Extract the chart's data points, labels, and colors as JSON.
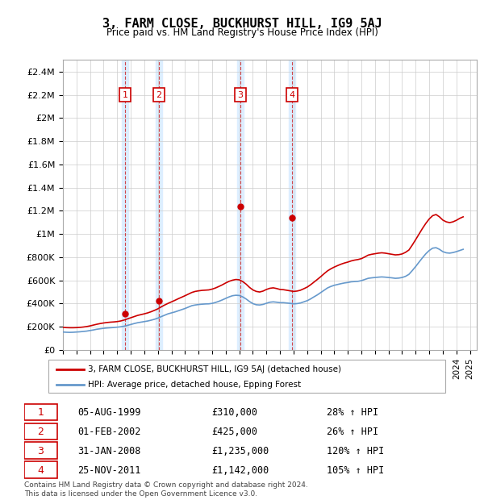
{
  "title": "3, FARM CLOSE, BUCKHURST HILL, IG9 5AJ",
  "subtitle": "Price paid vs. HM Land Registry's House Price Index (HPI)",
  "ylabel_values": [
    "£0",
    "£200K",
    "£400K",
    "£600K",
    "£800K",
    "£1M",
    "£1.2M",
    "£1.4M",
    "£1.6M",
    "£1.8M",
    "£2M",
    "£2.2M",
    "£2.4M"
  ],
  "y_values": [
    0,
    200000,
    400000,
    600000,
    800000,
    1000000,
    1200000,
    1400000,
    1600000,
    1800000,
    2000000,
    2200000,
    2400000
  ],
  "ylim": [
    0,
    2500000
  ],
  "xlim_start": 1995.0,
  "xlim_end": 2025.5,
  "hpi_color": "#6699cc",
  "price_color": "#cc0000",
  "shade_color": "#ddeeff",
  "transactions": [
    {
      "num": 1,
      "date": "05-AUG-1999",
      "year": 1999.58,
      "price": 310000,
      "pct": "28%",
      "dir": "↑"
    },
    {
      "num": 2,
      "date": "01-FEB-2002",
      "year": 2002.08,
      "price": 425000,
      "pct": "26%",
      "dir": "↑"
    },
    {
      "num": 3,
      "date": "31-JAN-2008",
      "year": 2008.08,
      "price": 1235000,
      "pct": "120%",
      "dir": "↑"
    },
    {
      "num": 4,
      "date": "25-NOV-2011",
      "year": 2011.9,
      "price": 1142000,
      "pct": "105%",
      "dir": "↑"
    }
  ],
  "legend_label_price": "3, FARM CLOSE, BUCKHURST HILL, IG9 5AJ (detached house)",
  "legend_label_hpi": "HPI: Average price, detached house, Epping Forest",
  "footer": "Contains HM Land Registry data © Crown copyright and database right 2024.\nThis data is licensed under the Open Government Licence v3.0.",
  "hpi_data": {
    "years": [
      1995.0,
      1995.25,
      1995.5,
      1995.75,
      1996.0,
      1996.25,
      1996.5,
      1996.75,
      1997.0,
      1997.25,
      1997.5,
      1997.75,
      1998.0,
      1998.25,
      1998.5,
      1998.75,
      1999.0,
      1999.25,
      1999.5,
      1999.75,
      2000.0,
      2000.25,
      2000.5,
      2000.75,
      2001.0,
      2001.25,
      2001.5,
      2001.75,
      2002.0,
      2002.25,
      2002.5,
      2002.75,
      2003.0,
      2003.25,
      2003.5,
      2003.75,
      2004.0,
      2004.25,
      2004.5,
      2004.75,
      2005.0,
      2005.25,
      2005.5,
      2005.75,
      2006.0,
      2006.25,
      2006.5,
      2006.75,
      2007.0,
      2007.25,
      2007.5,
      2007.75,
      2008.0,
      2008.25,
      2008.5,
      2008.75,
      2009.0,
      2009.25,
      2009.5,
      2009.75,
      2010.0,
      2010.25,
      2010.5,
      2010.75,
      2011.0,
      2011.25,
      2011.5,
      2011.75,
      2012.0,
      2012.25,
      2012.5,
      2012.75,
      2013.0,
      2013.25,
      2013.5,
      2013.75,
      2014.0,
      2014.25,
      2014.5,
      2014.75,
      2015.0,
      2015.25,
      2015.5,
      2015.75,
      2016.0,
      2016.25,
      2016.5,
      2016.75,
      2017.0,
      2017.25,
      2017.5,
      2017.75,
      2018.0,
      2018.25,
      2018.5,
      2018.75,
      2019.0,
      2019.25,
      2019.5,
      2019.75,
      2020.0,
      2020.25,
      2020.5,
      2020.75,
      2021.0,
      2021.25,
      2021.5,
      2021.75,
      2022.0,
      2022.25,
      2022.5,
      2022.75,
      2023.0,
      2023.25,
      2023.5,
      2023.75,
      2024.0,
      2024.25,
      2024.5
    ],
    "values": [
      155000,
      153000,
      152000,
      153000,
      155000,
      157000,
      160000,
      163000,
      168000,
      173000,
      179000,
      183000,
      187000,
      190000,
      192000,
      194000,
      197000,
      200000,
      205000,
      212000,
      220000,
      228000,
      235000,
      240000,
      245000,
      250000,
      257000,
      265000,
      275000,
      288000,
      300000,
      312000,
      320000,
      328000,
      338000,
      348000,
      358000,
      370000,
      382000,
      388000,
      392000,
      395000,
      397000,
      398000,
      402000,
      410000,
      420000,
      432000,
      445000,
      458000,
      468000,
      472000,
      470000,
      458000,
      440000,
      418000,
      400000,
      390000,
      388000,
      393000,
      403000,
      412000,
      415000,
      412000,
      408000,
      408000,
      405000,
      402000,
      398000,
      400000,
      405000,
      415000,
      425000,
      440000,
      458000,
      475000,
      495000,
      515000,
      535000,
      548000,
      558000,
      565000,
      572000,
      578000,
      582000,
      588000,
      590000,
      592000,
      598000,
      608000,
      618000,
      622000,
      625000,
      628000,
      630000,
      628000,
      625000,
      622000,
      618000,
      620000,
      625000,
      635000,
      652000,
      685000,
      720000,
      758000,
      795000,
      830000,
      858000,
      878000,
      882000,
      868000,
      848000,
      838000,
      835000,
      840000,
      848000,
      858000,
      868000
    ]
  },
  "price_data": {
    "years": [
      1995.0,
      1995.25,
      1995.5,
      1995.75,
      1996.0,
      1996.25,
      1996.5,
      1996.75,
      1997.0,
      1997.25,
      1997.5,
      1997.75,
      1998.0,
      1998.25,
      1998.5,
      1998.75,
      1999.0,
      1999.25,
      1999.5,
      1999.75,
      2000.0,
      2000.25,
      2000.5,
      2000.75,
      2001.0,
      2001.25,
      2001.5,
      2001.75,
      2002.0,
      2002.25,
      2002.5,
      2002.75,
      2003.0,
      2003.25,
      2003.5,
      2003.75,
      2004.0,
      2004.25,
      2004.5,
      2004.75,
      2005.0,
      2005.25,
      2005.5,
      2005.75,
      2006.0,
      2006.25,
      2006.5,
      2006.75,
      2007.0,
      2007.25,
      2007.5,
      2007.75,
      2008.0,
      2008.25,
      2008.5,
      2008.75,
      2009.0,
      2009.25,
      2009.5,
      2009.75,
      2010.0,
      2010.25,
      2010.5,
      2010.75,
      2011.0,
      2011.25,
      2011.5,
      2011.75,
      2012.0,
      2012.25,
      2012.5,
      2012.75,
      2013.0,
      2013.25,
      2013.5,
      2013.75,
      2014.0,
      2014.25,
      2014.5,
      2014.75,
      2015.0,
      2015.25,
      2015.5,
      2015.75,
      2016.0,
      2016.25,
      2016.5,
      2016.75,
      2017.0,
      2017.25,
      2017.5,
      2017.75,
      2018.0,
      2018.25,
      2018.5,
      2018.75,
      2019.0,
      2019.25,
      2019.5,
      2019.75,
      2020.0,
      2020.25,
      2020.5,
      2020.75,
      2021.0,
      2021.25,
      2021.5,
      2021.75,
      2022.0,
      2022.25,
      2022.5,
      2022.75,
      2023.0,
      2023.25,
      2023.5,
      2023.75,
      2024.0,
      2024.25,
      2024.5
    ],
    "values": [
      195000,
      193000,
      192000,
      192000,
      193000,
      195000,
      198000,
      202000,
      208000,
      215000,
      222000,
      228000,
      233000,
      237000,
      240000,
      242000,
      245000,
      250000,
      258000,
      268000,
      278000,
      288000,
      298000,
      305000,
      312000,
      320000,
      330000,
      342000,
      355000,
      372000,
      388000,
      402000,
      415000,
      428000,
      442000,
      455000,
      468000,
      482000,
      496000,
      505000,
      510000,
      514000,
      516000,
      518000,
      525000,
      535000,
      548000,
      562000,
      578000,
      592000,
      602000,
      608000,
      605000,
      590000,
      568000,
      540000,
      518000,
      505000,
      500000,
      508000,
      522000,
      532000,
      536000,
      530000,
      522000,
      520000,
      515000,
      510000,
      505000,
      508000,
      515000,
      528000,
      542000,
      562000,
      585000,
      608000,
      632000,
      658000,
      682000,
      700000,
      715000,
      728000,
      740000,
      750000,
      758000,
      768000,
      775000,
      780000,
      788000,
      802000,
      818000,
      825000,
      830000,
      835000,
      838000,
      835000,
      830000,
      825000,
      820000,
      822000,
      828000,
      842000,
      862000,
      905000,
      952000,
      1000000,
      1048000,
      1092000,
      1130000,
      1158000,
      1168000,
      1148000,
      1120000,
      1105000,
      1098000,
      1105000,
      1118000,
      1135000,
      1148000
    ]
  }
}
